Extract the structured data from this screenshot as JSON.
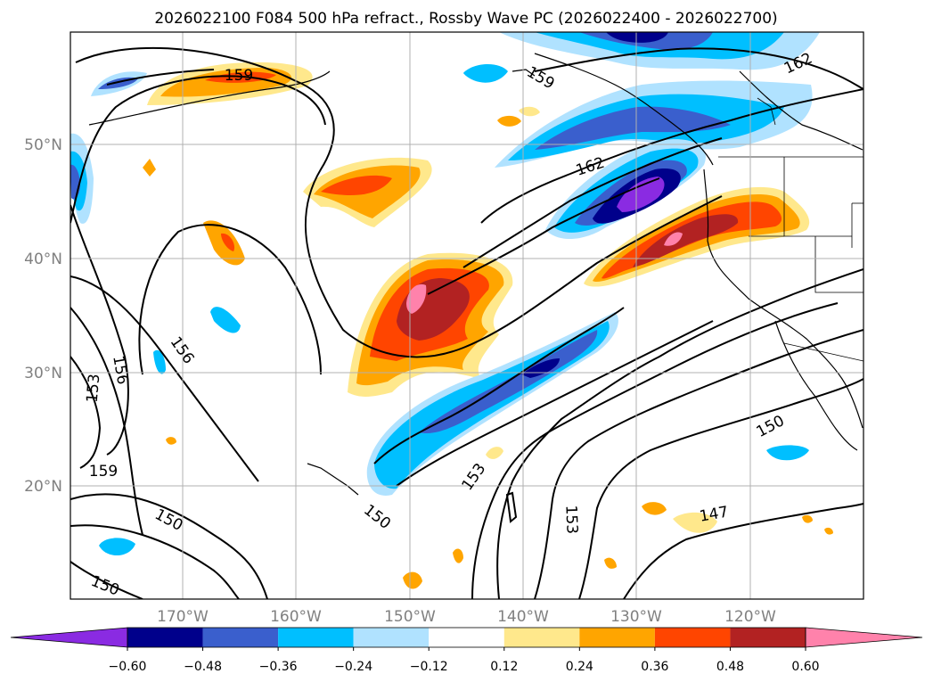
{
  "title": "2026022100 F084 500 hPa refract., Rossby Wave PC (2026022400 - 2026022700)",
  "map": {
    "lat_labels": [
      "50°N",
      "40°N",
      "30°N",
      "20°N"
    ],
    "lon_labels": [
      "170°W",
      "160°W",
      "150°W",
      "140°W",
      "130°W",
      "120°W"
    ],
    "contour_labels": [
      "159",
      "159",
      "162",
      "162",
      "156",
      "156",
      "153",
      "153",
      "153",
      "159",
      "150",
      "150",
      "150",
      "150",
      "147"
    ]
  },
  "colorbar": {
    "ticks": [
      "−0.60",
      "−0.48",
      "−0.36",
      "−0.24",
      "−0.12",
      "0.12",
      "0.24",
      "0.36",
      "0.48",
      "0.60"
    ],
    "colors": [
      "#8a2be2",
      "#00008b",
      "#3a5fcd",
      "#00bfff",
      "#b0e2ff",
      "#ffffff",
      "#ffe88c",
      "#ffa500",
      "#ff4500",
      "#b22222",
      "#ff82ab"
    ]
  }
}
